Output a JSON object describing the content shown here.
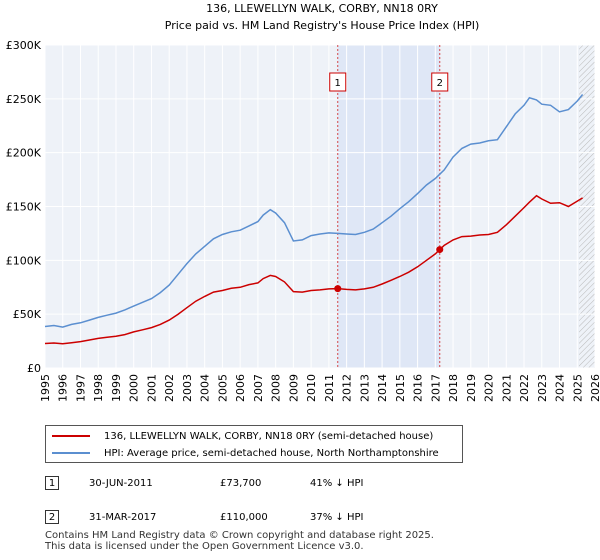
{
  "chart_data": {
    "type": "line",
    "title": "136, LLEWELLYN WALK, CORBY, NN18 0RY",
    "subtitle": "Price paid vs. HM Land Registry's House Price Index (HPI)",
    "xlabel": "",
    "ylabel": "",
    "xlim": [
      1995,
      2026
    ],
    "ylim": [
      0,
      300000
    ],
    "x_ticks": [
      "1995",
      "1996",
      "1997",
      "1998",
      "1999",
      "2000",
      "2001",
      "2002",
      "2003",
      "2004",
      "2005",
      "2006",
      "2007",
      "2008",
      "2009",
      "2010",
      "2011",
      "2012",
      "2013",
      "2014",
      "2015",
      "2016",
      "2017",
      "2018",
      "2019",
      "2020",
      "2021",
      "2022",
      "2023",
      "2024",
      "2025",
      "2026"
    ],
    "y_ticks": [
      {
        "value": 0,
        "label": "£0"
      },
      {
        "value": 50000,
        "label": "£50K"
      },
      {
        "value": 100000,
        "label": "£100K"
      },
      {
        "value": 150000,
        "label": "£150K"
      },
      {
        "value": 200000,
        "label": "£200K"
      },
      {
        "value": 250000,
        "label": "£250K"
      },
      {
        "value": 300000,
        "label": "£300K"
      }
    ],
    "grid": true,
    "shaded_period": [
      2011.5,
      2017.25
    ],
    "forecast_from": 2025.1,
    "series": [
      {
        "name": "136, LLEWELLYN WALK, CORBY, NN18 0RY (semi-detached house)",
        "color": "#cc0000",
        "x": [
          1995,
          1995.5,
          1996,
          1996.5,
          1997,
          1997.5,
          1998,
          1998.5,
          1999,
          1999.5,
          2000,
          2000.5,
          2001,
          2001.5,
          2002,
          2002.5,
          2003,
          2003.5,
          2004,
          2004.5,
          2005,
          2005.5,
          2006,
          2006.5,
          2007,
          2007.3,
          2007.7,
          2008,
          2008.5,
          2009,
          2009.5,
          2010,
          2010.5,
          2011,
          2011.5,
          2012,
          2012.5,
          2013,
          2013.5,
          2014,
          2014.5,
          2015,
          2015.5,
          2016,
          2016.5,
          2017,
          2017.25,
          2017.5,
          2018,
          2018.5,
          2019,
          2019.5,
          2020,
          2020.5,
          2021,
          2021.5,
          2022,
          2022.3,
          2022.7,
          2023,
          2023.5,
          2024,
          2024.5,
          2025,
          2025.3
        ],
        "values": [
          22800,
          23200,
          22500,
          23500,
          24500,
          26000,
          27500,
          28500,
          29500,
          31000,
          33500,
          35500,
          37500,
          40500,
          44500,
          50000,
          56000,
          62000,
          66500,
          70500,
          72000,
          74000,
          75000,
          77500,
          79000,
          83000,
          86000,
          85000,
          80000,
          71000,
          70500,
          72000,
          72500,
          73500,
          73700,
          73000,
          72500,
          73500,
          75000,
          78000,
          81500,
          85000,
          89000,
          94000,
          100000,
          106000,
          110000,
          114000,
          119000,
          122000,
          122500,
          123500,
          124000,
          126000,
          133000,
          141000,
          149000,
          154000,
          160000,
          157000,
          153000,
          153500,
          150000,
          155000,
          158000
        ]
      },
      {
        "name": "HPI: Average price, semi-detached house, North Northamptonshire",
        "color": "#5b8fd0",
        "x": [
          1995,
          1995.5,
          1996,
          1996.5,
          1997,
          1997.5,
          1998,
          1998.5,
          1999,
          1999.5,
          2000,
          2000.5,
          2001,
          2001.5,
          2002,
          2002.5,
          2003,
          2003.5,
          2004,
          2004.5,
          2005,
          2005.5,
          2006,
          2006.5,
          2007,
          2007.3,
          2007.7,
          2008,
          2008.5,
          2009,
          2009.5,
          2010,
          2010.5,
          2011,
          2011.5,
          2012,
          2012.5,
          2013,
          2013.5,
          2014,
          2014.5,
          2015,
          2015.5,
          2016,
          2016.5,
          2017,
          2017.5,
          2018,
          2018.5,
          2019,
          2019.5,
          2020,
          2020.5,
          2021,
          2021.5,
          2022,
          2022.3,
          2022.7,
          2023,
          2023.5,
          2024,
          2024.5,
          2025,
          2025.3
        ],
        "values": [
          38500,
          39500,
          38000,
          40500,
          42000,
          44500,
          47000,
          49000,
          51000,
          54000,
          57500,
          61000,
          64500,
          70000,
          77000,
          87000,
          97000,
          106000,
          113000,
          120000,
          124000,
          126500,
          128000,
          132000,
          136000,
          142000,
          147000,
          144000,
          135000,
          118000,
          119000,
          123000,
          124500,
          125500,
          125000,
          124500,
          124000,
          126000,
          129000,
          135000,
          141000,
          148000,
          154500,
          162000,
          170000,
          176000,
          184000,
          196000,
          204000,
          208000,
          209000,
          211000,
          212000,
          224000,
          236000,
          244000,
          251000,
          249000,
          245000,
          244000,
          238000,
          240000,
          248000,
          254000
        ]
      }
    ],
    "markers": [
      {
        "label": "1",
        "x": 2011.5,
        "value": 73700
      },
      {
        "label": "2",
        "x": 2017.25,
        "value": 110000
      }
    ]
  },
  "legend": {
    "red_label": "136, LLEWELLYN WALK, CORBY, NN18 0RY (semi-detached house)",
    "blue_label": "HPI: Average price, semi-detached house, North Northamptonshire"
  },
  "transactions": [
    {
      "num": "1",
      "date": "30-JUN-2011",
      "price": "£73,700",
      "hpi": "41% ↓ HPI"
    },
    {
      "num": "2",
      "date": "31-MAR-2017",
      "price": "£110,000",
      "hpi": "37% ↓ HPI"
    }
  ],
  "footer": {
    "line1": "Contains HM Land Registry data © Crown copyright and database right 2025.",
    "line2": "This data is licensed under the Open Government Licence v3.0."
  }
}
